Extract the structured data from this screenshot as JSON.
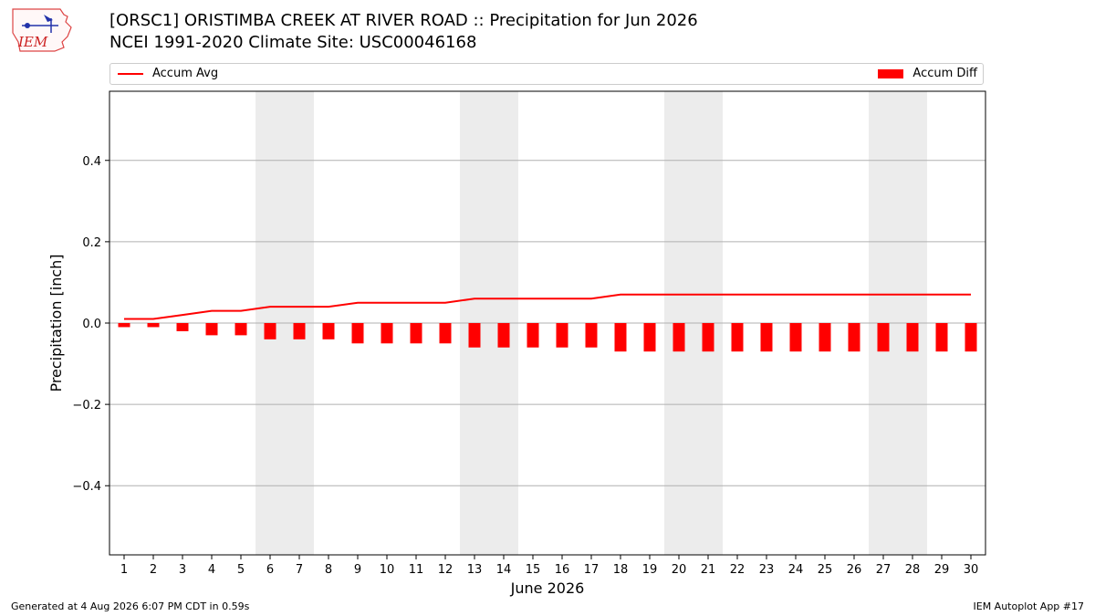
{
  "header": {
    "title_line1": "[ORSC1] ORISTIMBA CREEK AT RIVER ROAD :: Precipitation for Jun 2026",
    "title_line2": "NCEI 1991-2020 Climate Site: USC00046168"
  },
  "logo": {
    "text": "IEM"
  },
  "legend": {
    "avg_label": "Accum Avg",
    "diff_label": "Accum Diff"
  },
  "footer": {
    "left": "Generated at 4 Aug 2026 6:07 PM CDT in 0.59s",
    "right": "IEM Autoplot App #17"
  },
  "colors": {
    "series": "#ff0000",
    "weekend_band": "#ececec",
    "grid": "#b0b0b0"
  },
  "chart_data": {
    "type": "bar",
    "xlabel": "June 2026",
    "ylabel": "Precipitation [inch]",
    "ylim": [
      -0.57,
      0.57
    ],
    "yticks": [
      -0.4,
      -0.2,
      0.0,
      0.2,
      0.4
    ],
    "ytick_labels": [
      "−0.4",
      "−0.2",
      "0.0",
      "0.2",
      "0.4"
    ],
    "categories": [
      "1",
      "2",
      "3",
      "4",
      "5",
      "6",
      "7",
      "8",
      "9",
      "10",
      "11",
      "12",
      "13",
      "14",
      "15",
      "16",
      "17",
      "18",
      "19",
      "20",
      "21",
      "22",
      "23",
      "24",
      "25",
      "26",
      "27",
      "28",
      "29",
      "30"
    ],
    "weekend_bands": [
      [
        6,
        7
      ],
      [
        13,
        14
      ],
      [
        20,
        21
      ],
      [
        27,
        28
      ]
    ],
    "grid": "horizontal",
    "series": [
      {
        "name": "Accum Avg",
        "kind": "line",
        "values": [
          0.01,
          0.01,
          0.02,
          0.03,
          0.03,
          0.04,
          0.04,
          0.04,
          0.05,
          0.05,
          0.05,
          0.05,
          0.06,
          0.06,
          0.06,
          0.06,
          0.06,
          0.07,
          0.07,
          0.07,
          0.07,
          0.07,
          0.07,
          0.07,
          0.07,
          0.07,
          0.07,
          0.07,
          0.07,
          0.07
        ]
      },
      {
        "name": "Accum Diff",
        "kind": "bar",
        "values": [
          -0.01,
          -0.01,
          -0.02,
          -0.03,
          -0.03,
          -0.04,
          -0.04,
          -0.04,
          -0.05,
          -0.05,
          -0.05,
          -0.05,
          -0.06,
          -0.06,
          -0.06,
          -0.06,
          -0.06,
          -0.07,
          -0.07,
          -0.07,
          -0.07,
          -0.07,
          -0.07,
          -0.07,
          -0.07,
          -0.07,
          -0.07,
          -0.07,
          -0.07,
          -0.07
        ]
      }
    ]
  }
}
